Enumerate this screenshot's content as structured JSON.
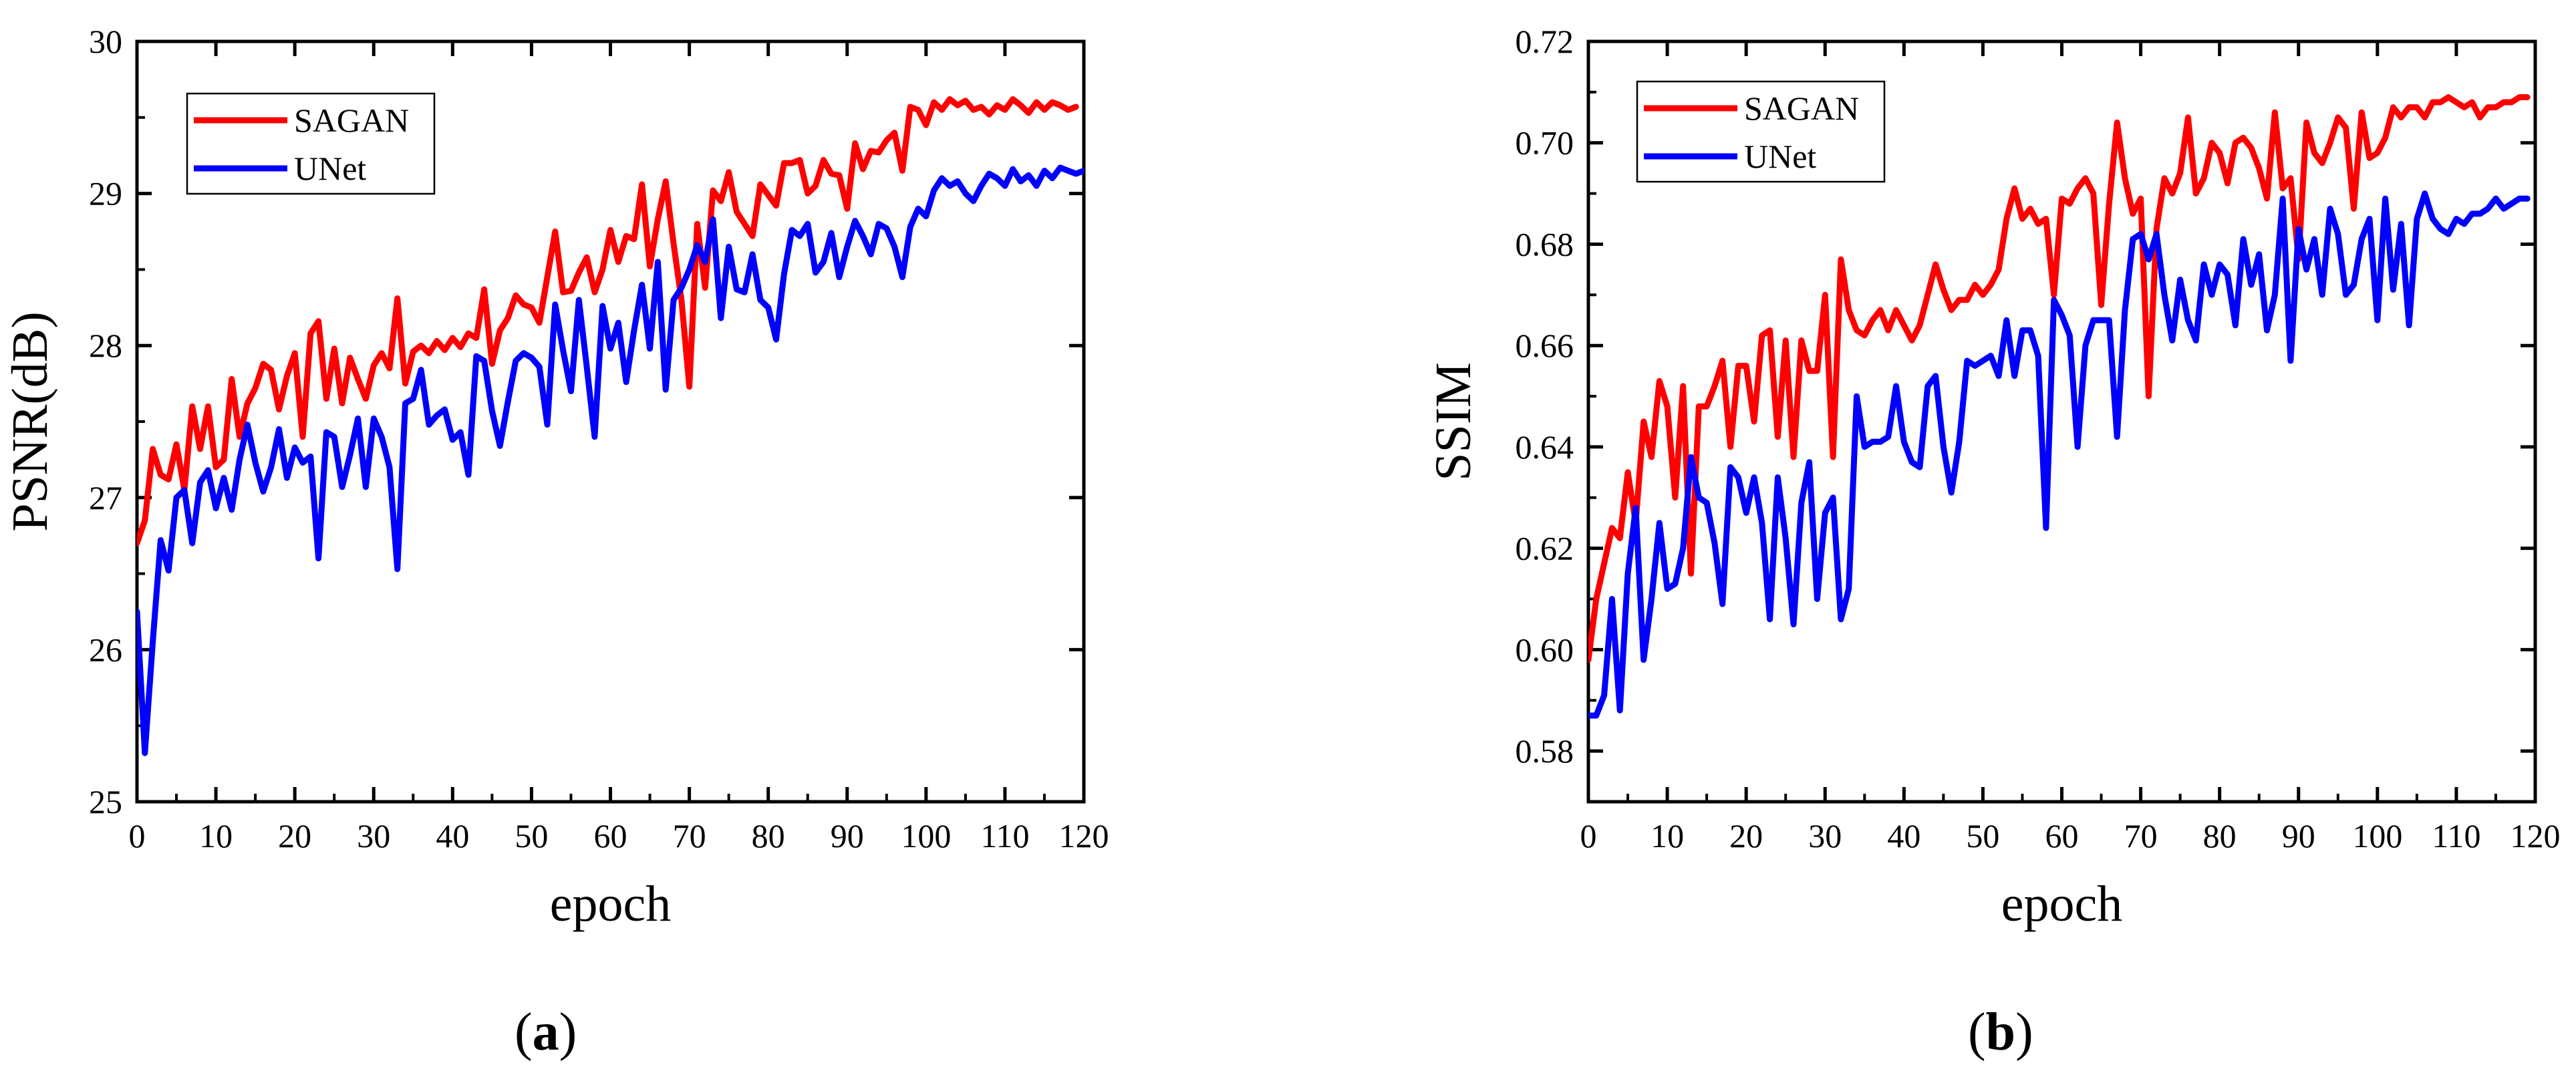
{
  "chart_data": [
    {
      "type": "line",
      "panel": "a",
      "xlabel": "epoch",
      "ylabel": "PSNR(dB)",
      "xlim": [
        0,
        120
      ],
      "ylim": [
        25,
        30
      ],
      "xticks": [
        0,
        10,
        20,
        30,
        40,
        50,
        60,
        70,
        80,
        90,
        100,
        110,
        120
      ],
      "yticks": [
        25,
        26,
        27,
        28,
        29,
        30
      ],
      "legend_position": "top-left",
      "series": [
        {
          "name": "SAGAN",
          "color": "#ff0000",
          "values": [
            26.7,
            26.85,
            27.32,
            27.15,
            27.12,
            27.35,
            27.05,
            27.6,
            27.32,
            27.6,
            27.2,
            27.25,
            27.78,
            27.4,
            27.62,
            27.72,
            27.88,
            27.84,
            27.58,
            27.8,
            27.95,
            27.4,
            28.08,
            28.16,
            27.65,
            27.98,
            27.62,
            27.92,
            27.78,
            27.65,
            27.87,
            27.95,
            27.85,
            28.31,
            27.75,
            27.96,
            28.0,
            27.95,
            28.03,
            27.97,
            28.05,
            27.99,
            28.08,
            28.05,
            28.37,
            27.88,
            28.1,
            28.18,
            28.33,
            28.27,
            28.25,
            28.15,
            28.45,
            28.75,
            28.35,
            28.36,
            28.48,
            28.58,
            28.35,
            28.5,
            28.76,
            28.55,
            28.72,
            28.7,
            29.06,
            28.52,
            28.83,
            29.08,
            28.67,
            28.3,
            27.73,
            28.8,
            28.38,
            29.02,
            28.95,
            29.14,
            28.88,
            28.8,
            28.72,
            29.06,
            28.99,
            28.92,
            29.2,
            29.2,
            29.22,
            29.0,
            29.05,
            29.22,
            29.13,
            29.12,
            28.9,
            29.33,
            29.16,
            29.28,
            29.27,
            29.35,
            29.4,
            29.15,
            29.57,
            29.55,
            29.45,
            29.6,
            29.55,
            29.62,
            29.58,
            29.61,
            29.55,
            29.57,
            29.52,
            29.58,
            29.55,
            29.62,
            29.58,
            29.53,
            29.6,
            29.55,
            29.6,
            29.58,
            29.55,
            29.57
          ]
        },
        {
          "name": "UNet",
          "color": "#0000ff",
          "values": [
            26.25,
            25.32,
            26.05,
            26.72,
            26.52,
            27.0,
            27.05,
            26.7,
            27.1,
            27.18,
            26.93,
            27.13,
            26.92,
            27.25,
            27.48,
            27.23,
            27.04,
            27.2,
            27.45,
            27.13,
            27.33,
            27.23,
            27.27,
            26.6,
            27.43,
            27.4,
            27.07,
            27.28,
            27.52,
            27.07,
            27.52,
            27.4,
            27.2,
            26.53,
            27.62,
            27.65,
            27.84,
            27.48,
            27.54,
            27.58,
            27.38,
            27.43,
            27.15,
            27.93,
            27.9,
            27.57,
            27.34,
            27.63,
            27.9,
            27.95,
            27.92,
            27.86,
            27.48,
            28.27,
            27.97,
            27.7,
            28.3,
            27.86,
            27.4,
            28.26,
            27.98,
            28.15,
            27.76,
            28.1,
            28.4,
            27.98,
            28.55,
            27.71,
            28.3,
            28.38,
            28.5,
            28.66,
            28.55,
            28.83,
            28.18,
            28.65,
            28.37,
            28.35,
            28.6,
            28.3,
            28.25,
            28.04,
            28.47,
            28.76,
            28.72,
            28.8,
            28.48,
            28.55,
            28.74,
            28.45,
            28.65,
            28.82,
            28.72,
            28.6,
            28.8,
            28.77,
            28.65,
            28.45,
            28.78,
            28.9,
            28.85,
            29.02,
            29.1,
            29.05,
            29.08,
            29.0,
            28.95,
            29.05,
            29.13,
            29.1,
            29.05,
            29.16,
            29.08,
            29.12,
            29.05,
            29.15,
            29.1,
            29.17,
            29.15,
            29.13,
            29.15
          ]
        }
      ]
    },
    {
      "type": "line",
      "panel": "b",
      "xlabel": "epoch",
      "ylabel": "SSIM",
      "xlim": [
        0,
        120
      ],
      "ylim": [
        0.57,
        0.72
      ],
      "xticks": [
        0,
        10,
        20,
        30,
        40,
        50,
        60,
        70,
        80,
        90,
        100,
        110,
        120
      ],
      "yticks": [
        0.58,
        0.6,
        0.62,
        0.64,
        0.66,
        0.68,
        0.7,
        0.72
      ],
      "legend_position": "top-left",
      "series": [
        {
          "name": "SAGAN",
          "color": "#ff0000",
          "values": [
            0.598,
            0.61,
            0.617,
            0.624,
            0.622,
            0.635,
            0.625,
            0.645,
            0.638,
            0.653,
            0.648,
            0.63,
            0.652,
            0.615,
            0.648,
            0.648,
            0.652,
            0.657,
            0.64,
            0.656,
            0.656,
            0.645,
            0.662,
            0.663,
            0.642,
            0.661,
            0.638,
            0.661,
            0.655,
            0.655,
            0.67,
            0.638,
            0.677,
            0.667,
            0.663,
            0.662,
            0.665,
            0.667,
            0.663,
            0.667,
            0.664,
            0.661,
            0.664,
            0.67,
            0.676,
            0.671,
            0.667,
            0.669,
            0.669,
            0.672,
            0.67,
            0.672,
            0.675,
            0.685,
            0.691,
            0.685,
            0.687,
            0.684,
            0.685,
            0.67,
            0.689,
            0.688,
            0.691,
            0.693,
            0.69,
            0.668,
            0.688,
            0.704,
            0.693,
            0.686,
            0.689,
            0.65,
            0.683,
            0.693,
            0.69,
            0.694,
            0.705,
            0.69,
            0.693,
            0.7,
            0.698,
            0.692,
            0.7,
            0.701,
            0.699,
            0.695,
            0.689,
            0.706,
            0.691,
            0.693,
            0.677,
            0.704,
            0.698,
            0.696,
            0.7,
            0.705,
            0.703,
            0.687,
            0.706,
            0.697,
            0.698,
            0.701,
            0.707,
            0.705,
            0.707,
            0.707,
            0.705,
            0.708,
            0.708,
            0.709,
            0.708,
            0.707,
            0.708,
            0.705,
            0.707,
            0.707,
            0.708,
            0.708,
            0.709,
            0.709
          ]
        },
        {
          "name": "UNet",
          "color": "#0000ff",
          "values": [
            0.587,
            0.587,
            0.591,
            0.61,
            0.588,
            0.615,
            0.628,
            0.598,
            0.61,
            0.625,
            0.612,
            0.613,
            0.62,
            0.638,
            0.63,
            0.629,
            0.621,
            0.609,
            0.636,
            0.634,
            0.627,
            0.634,
            0.625,
            0.606,
            0.634,
            0.622,
            0.605,
            0.629,
            0.637,
            0.61,
            0.627,
            0.63,
            0.606,
            0.612,
            0.65,
            0.64,
            0.641,
            0.641,
            0.642,
            0.652,
            0.641,
            0.637,
            0.636,
            0.652,
            0.654,
            0.64,
            0.631,
            0.641,
            0.657,
            0.656,
            0.657,
            0.658,
            0.654,
            0.665,
            0.654,
            0.663,
            0.663,
            0.658,
            0.624,
            0.669,
            0.666,
            0.662,
            0.64,
            0.66,
            0.665,
            0.665,
            0.665,
            0.642,
            0.667,
            0.681,
            0.682,
            0.677,
            0.682,
            0.67,
            0.661,
            0.673,
            0.665,
            0.661,
            0.676,
            0.67,
            0.676,
            0.674,
            0.664,
            0.681,
            0.672,
            0.678,
            0.663,
            0.67,
            0.689,
            0.657,
            0.683,
            0.675,
            0.681,
            0.67,
            0.687,
            0.682,
            0.67,
            0.672,
            0.681,
            0.685,
            0.665,
            0.689,
            0.671,
            0.684,
            0.664,
            0.685,
            0.69,
            0.685,
            0.683,
            0.682,
            0.685,
            0.684,
            0.686,
            0.686,
            0.687,
            0.689,
            0.687,
            0.688,
            0.689,
            0.689
          ]
        }
      ]
    }
  ],
  "panel_labels": {
    "a": "a",
    "b": "b"
  }
}
